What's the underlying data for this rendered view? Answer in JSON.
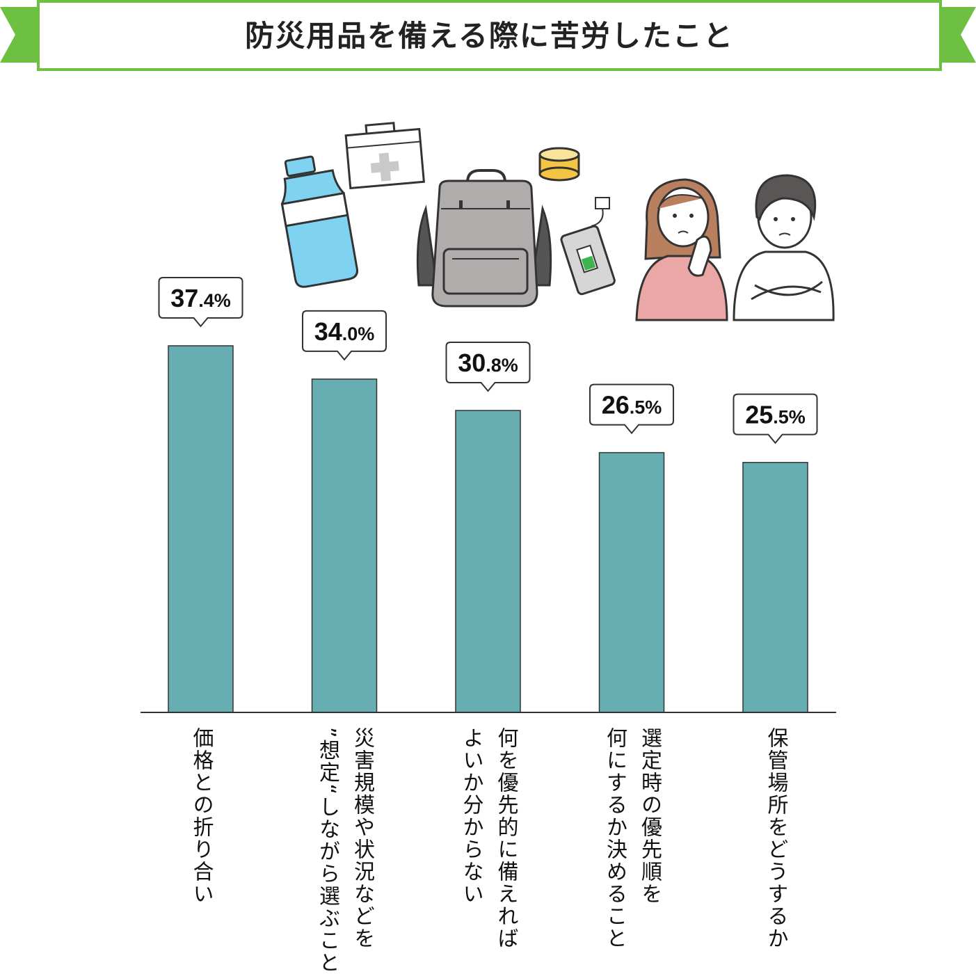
{
  "title": "防災用品を備える際に苦労したこと",
  "colors": {
    "bar": "#66aeb1",
    "accent": "#6ec042",
    "axis": "#333333"
  },
  "illustration": {
    "items": [
      "water-bottle-icon",
      "first-aid-kit-icon",
      "backpack-icon",
      "canned-food-icon",
      "power-bank-icon",
      "worried-woman-icon",
      "worried-man-icon"
    ]
  },
  "chart_data": {
    "type": "bar",
    "title": "防災用品を備える際に苦労したこと",
    "ylim": [
      0,
      37.4
    ],
    "grid": false,
    "unit": "%",
    "categories": [
      "価格との折り合い",
      "災害規模や状況などを\n”想定“しながら選ぶこと",
      "何を優先的に備えれば\nよいか分からない",
      "選定時の優先順を\n何にするか決めること",
      "保管場所をどうするか"
    ],
    "values": [
      37.4,
      34.0,
      30.8,
      26.5,
      25.5
    ],
    "labels": [
      {
        "main": "37",
        "dec": ".4",
        "pct": "%"
      },
      {
        "main": "34",
        "dec": ".0",
        "pct": "%"
      },
      {
        "main": "30",
        "dec": ".8",
        "pct": "%"
      },
      {
        "main": "26",
        "dec": ".5",
        "pct": "%"
      },
      {
        "main": "25",
        "dec": ".5",
        "pct": "%"
      }
    ]
  }
}
